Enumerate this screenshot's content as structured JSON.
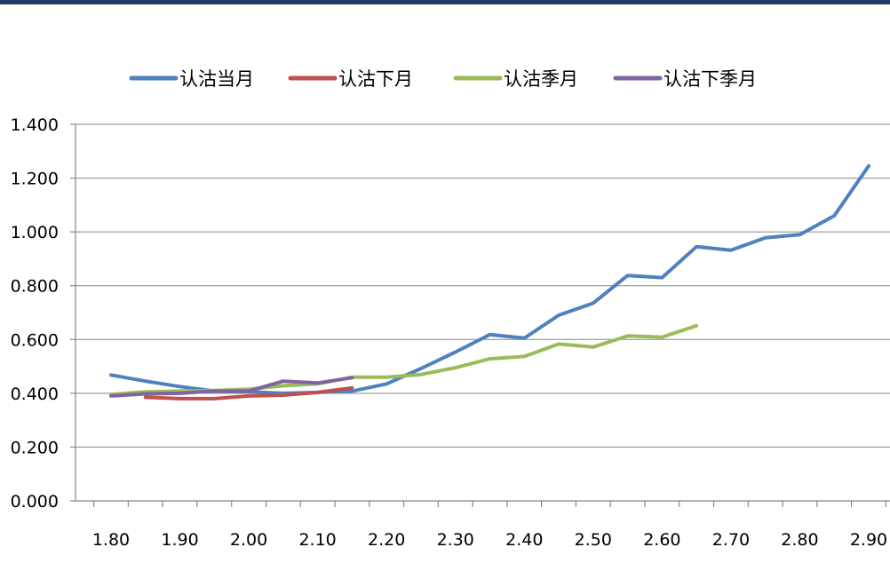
{
  "colors": {
    "header_bar": "#1f3864",
    "gridline": "#868686",
    "axis": "#868686"
  },
  "chart_data": {
    "type": "line",
    "title": "",
    "xlabel": "",
    "ylabel": "",
    "x_ticks": [
      "1.80",
      "1.90",
      "2.00",
      "2.10",
      "2.20",
      "2.30",
      "2.40",
      "2.50",
      "2.60",
      "2.70",
      "2.80",
      "2.90"
    ],
    "y_ticks": [
      "0.000",
      "0.200",
      "0.400",
      "0.600",
      "0.800",
      "1.000",
      "1.200",
      "1.400"
    ],
    "xlim": [
      1.75,
      2.925
    ],
    "ylim": [
      0,
      1.4
    ],
    "grid": "horizontal",
    "legend_position": "top",
    "series": [
      {
        "name": "认沽当月",
        "color": "#4f81bd",
        "points": [
          [
            1.8,
            0.468
          ],
          [
            1.85,
            0.445
          ],
          [
            1.9,
            0.425
          ],
          [
            1.95,
            0.408
          ],
          [
            2.0,
            0.405
          ],
          [
            2.05,
            0.4
          ],
          [
            2.1,
            0.403
          ],
          [
            2.15,
            0.408
          ],
          [
            2.2,
            0.435
          ],
          [
            2.25,
            0.492
          ],
          [
            2.3,
            0.553
          ],
          [
            2.35,
            0.618
          ],
          [
            2.4,
            0.605
          ],
          [
            2.45,
            0.69
          ],
          [
            2.5,
            0.735
          ],
          [
            2.55,
            0.838
          ],
          [
            2.6,
            0.83
          ],
          [
            2.65,
            0.945
          ],
          [
            2.7,
            0.932
          ],
          [
            2.75,
            0.978
          ],
          [
            2.8,
            0.99
          ],
          [
            2.85,
            1.06
          ],
          [
            2.9,
            1.245
          ]
        ]
      },
      {
        "name": "认沽下月",
        "color": "#c0504d",
        "points": [
          [
            1.85,
            0.385
          ],
          [
            1.9,
            0.38
          ],
          [
            1.95,
            0.38
          ],
          [
            2.0,
            0.39
          ],
          [
            2.05,
            0.393
          ],
          [
            2.1,
            0.403
          ],
          [
            2.15,
            0.42
          ]
        ]
      },
      {
        "name": "认沽季月",
        "color": "#9bbb59",
        "points": [
          [
            1.8,
            0.396
          ],
          [
            1.85,
            0.405
          ],
          [
            1.9,
            0.408
          ],
          [
            1.95,
            0.41
          ],
          [
            2.0,
            0.415
          ],
          [
            2.05,
            0.428
          ],
          [
            2.1,
            0.435
          ],
          [
            2.15,
            0.46
          ],
          [
            2.2,
            0.46
          ],
          [
            2.25,
            0.47
          ],
          [
            2.3,
            0.495
          ],
          [
            2.35,
            0.528
          ],
          [
            2.4,
            0.537
          ],
          [
            2.45,
            0.583
          ],
          [
            2.5,
            0.572
          ],
          [
            2.55,
            0.613
          ],
          [
            2.6,
            0.609
          ],
          [
            2.65,
            0.651
          ]
        ]
      },
      {
        "name": "认沽下季月",
        "color": "#8064a2",
        "points": [
          [
            1.8,
            0.39
          ],
          [
            1.85,
            0.398
          ],
          [
            1.9,
            0.4
          ],
          [
            1.95,
            0.408
          ],
          [
            2.0,
            0.408
          ],
          [
            2.05,
            0.445
          ],
          [
            2.1,
            0.438
          ],
          [
            2.15,
            0.458
          ]
        ]
      }
    ]
  }
}
